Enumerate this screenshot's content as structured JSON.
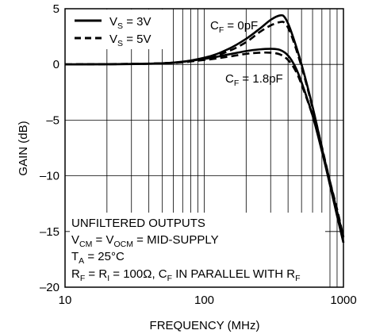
{
  "chart_data": {
    "type": "line",
    "xlabel": "FREQUENCY (MHz)",
    "ylabel": "GAIN (dB)",
    "xscale": "log",
    "xlim": [
      10,
      1000
    ],
    "ylim": [
      -20,
      5
    ],
    "xticks": [
      10,
      100,
      1000
    ],
    "xtick_labels": [
      "10",
      "100",
      "1000"
    ],
    "yticks": [
      5,
      0,
      -5,
      -10,
      -15,
      -20
    ],
    "ytick_labels": [
      "5",
      "0",
      "–5",
      "–10",
      "–15",
      "–20"
    ],
    "grid": true,
    "legend_position": "top-left",
    "legend": [
      {
        "main": "V",
        "sub": "S",
        "rest": " = 3V",
        "style": "solid"
      },
      {
        "main": "V",
        "sub": "S",
        "rest": " = 5V",
        "style": "dashed"
      }
    ],
    "annotations": [
      {
        "main": "C",
        "sub": "F",
        "rest": " = 0pF"
      },
      {
        "main": "C",
        "sub": "F",
        "rest": " = 1.8pF"
      }
    ],
    "notes": {
      "line1": "UNFILTERED OUTPUTS",
      "line2": {
        "p1": "V",
        "s1": "CM",
        "p2": " = V",
        "s2": "OCM",
        "p3": " = MID-SUPPLY"
      },
      "line3": {
        "p1": "T",
        "s1": "A",
        "p2": " = 25°C"
      },
      "line4": {
        "p1": "R",
        "s1": "F",
        "p2": " = R",
        "s2": "I",
        "p3": " = 100Ω, C",
        "s3": "F",
        "p4": " IN PARALLEL WITH R",
        "s4": "F"
      }
    },
    "series": [
      {
        "style": "solid",
        "x": [
          10,
          50,
          100,
          150,
          200,
          250,
          300,
          350,
          380,
          420,
          500,
          600,
          700,
          800,
          900,
          1000
        ],
        "y": [
          0,
          0.1,
          0.6,
          1.4,
          2.3,
          3.2,
          4.0,
          4.4,
          4.2,
          3.0,
          0,
          -3.8,
          -7.5,
          -10.8,
          -13.6,
          -16.0
        ]
      },
      {
        "style": "dashed",
        "x": [
          10,
          50,
          100,
          150,
          200,
          250,
          300,
          350,
          380,
          420,
          500,
          600,
          700,
          800,
          900,
          1000
        ],
        "y": [
          0,
          0.1,
          0.5,
          1.2,
          2.0,
          2.9,
          3.5,
          3.8,
          3.7,
          2.7,
          -0.2,
          -3.9,
          -7.4,
          -10.5,
          -13.2,
          -15.5
        ]
      },
      {
        "style": "solid",
        "x": [
          10,
          50,
          100,
          150,
          200,
          250,
          300,
          350,
          400,
          450,
          500,
          600,
          700,
          800,
          900,
          1000
        ],
        "y": [
          0,
          0.1,
          0.5,
          0.9,
          1.2,
          1.35,
          1.4,
          1.3,
          0.8,
          -0.2,
          -1.6,
          -4.6,
          -7.8,
          -10.8,
          -13.5,
          -16.0
        ]
      },
      {
        "style": "dashed",
        "x": [
          10,
          50,
          100,
          150,
          200,
          250,
          300,
          350,
          400,
          450,
          500,
          600,
          700,
          800,
          900,
          1000
        ],
        "y": [
          0,
          0.1,
          0.4,
          0.7,
          0.95,
          1.05,
          1.05,
          0.9,
          0.4,
          -0.5,
          -1.8,
          -4.6,
          -7.6,
          -10.5,
          -13.0,
          -15.5
        ]
      }
    ]
  }
}
